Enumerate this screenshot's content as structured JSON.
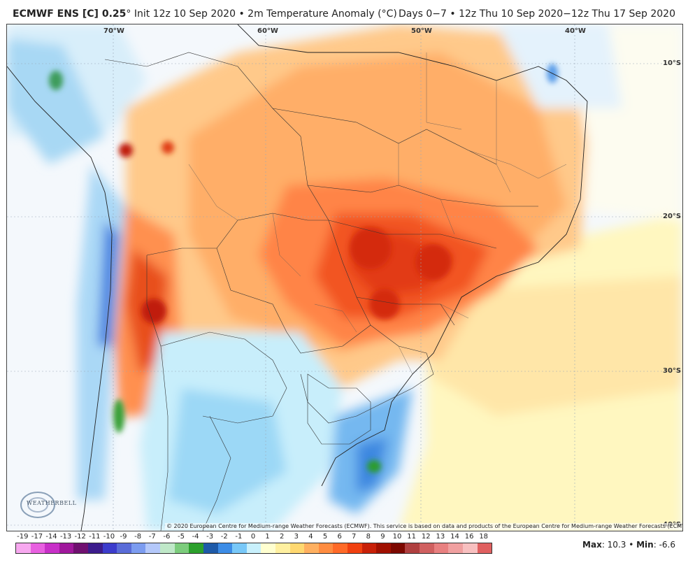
{
  "header": {
    "model": "ECMWF ENS [C] 0.25",
    "degree": "°",
    "init_text": " Init 12z 10 Sep 2020 • 2m Temperature Anomaly (°C)",
    "valid_text": "Days 0−7 • 12z Thu 10 Sep 2020−12z Thu 17 Sep 2020"
  },
  "map": {
    "lon_labels": [
      "70°W",
      "60°W",
      "50°W",
      "40°W"
    ],
    "lat_labels": [
      "10°S",
      "20°S",
      "30°S",
      "40°S"
    ],
    "copyright": "© 2020 European Centre for Medium-range Weather Forecasts (ECMWF). This service is based on data and products of the European Centre for Medium-range Weather Forecasts (ECMWF).",
    "logo_text": "WEATHERBELL"
  },
  "colorbar": {
    "labels": [
      "-19",
      "-17",
      "-14",
      "-13",
      "-12",
      "-11",
      "-10",
      "-9",
      "-8",
      "-7",
      "-6",
      "-5",
      "-4",
      "-3",
      "-2",
      "-1",
      "0",
      "1",
      "2",
      "3",
      "4",
      "5",
      "6",
      "7",
      "8",
      "9",
      "10",
      "11",
      "12",
      "13",
      "14",
      "16",
      "18"
    ],
    "colors": [
      "#f7a8ef",
      "#e860e0",
      "#c830c8",
      "#a0189c",
      "#701070",
      "#3c1c8c",
      "#3c3ccc",
      "#5a6cd8",
      "#7c9cf0",
      "#b4c8fa",
      "#bfe8c8",
      "#7ccc7c",
      "#2ca02c",
      "#1e5aa8",
      "#3c8ce6",
      "#78c8f8",
      "#c8f0fc",
      "#ffffd0",
      "#fff0a0",
      "#ffd870",
      "#ffb060",
      "#ff8c40",
      "#ff6a28",
      "#f04010",
      "#c82008",
      "#a01000",
      "#7c0800",
      "#b04040",
      "#d06060",
      "#e88080",
      "#f0a0a0",
      "#f8c0c0",
      "#e06060"
    ]
  },
  "stats": {
    "max_label": "Max",
    "max_value": ": 10.3",
    "separator": " • ",
    "min_label": "Min",
    "min_value": ": -6.6"
  }
}
